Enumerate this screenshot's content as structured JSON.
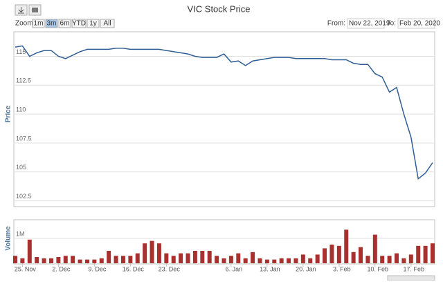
{
  "range_selector": {
    "zoom_label": "Zoom",
    "buttons": [
      "1m",
      "3m",
      "6m",
      "YTD",
      "1y",
      "All"
    ],
    "selected": 1,
    "from_label": "From:",
    "from": "Nov 22, 2019",
    "to_label": "To:",
    "to": "Feb 20, 2020"
  },
  "chart_data": [
    {
      "type": "line",
      "title": "VIC Stock Price",
      "y_label": "Price",
      "color": "#2f5d96",
      "ylim": [
        102,
        117
      ],
      "yticks": [
        102.5,
        105,
        107.5,
        110,
        112.5,
        115
      ],
      "grid": true,
      "values": [
        115.8,
        115.9,
        115.0,
        115.3,
        115.5,
        115.5,
        115.0,
        114.8,
        115.1,
        115.4,
        115.6,
        115.6,
        115.6,
        115.6,
        115.7,
        115.7,
        115.6,
        115.6,
        115.6,
        115.6,
        115.6,
        115.5,
        115.4,
        115.3,
        115.2,
        115.0,
        114.9,
        114.9,
        114.9,
        115.2,
        114.5,
        114.6,
        114.2,
        114.6,
        114.7,
        114.8,
        114.9,
        114.9,
        114.9,
        114.8,
        114.8,
        114.8,
        114.8,
        114.8,
        114.7,
        114.7,
        114.7,
        114.4,
        114.3,
        114.3,
        113.5,
        113.2,
        111.9,
        112.3,
        110.0,
        108.0,
        104.4,
        104.9,
        105.8
      ]
    },
    {
      "type": "bar",
      "y_label": "Volume",
      "color": "#a8302e",
      "ylim": [
        0,
        1750000
      ],
      "yticks": [
        {
          "value": 1000000,
          "label": "1M"
        }
      ],
      "grid": true,
      "categories": [
        null,
        "25. Nov",
        null,
        null,
        null,
        null,
        "2. Dec",
        null,
        null,
        null,
        null,
        "9. Dec",
        null,
        null,
        null,
        null,
        "16. Dec",
        null,
        null,
        null,
        null,
        "23. Dec",
        null,
        null,
        null,
        null,
        null,
        null,
        null,
        null,
        "6. Jan",
        null,
        null,
        null,
        null,
        "13. Jan",
        null,
        null,
        null,
        null,
        "20. Jan",
        null,
        null,
        null,
        null,
        "3. Feb",
        null,
        null,
        null,
        null,
        "10. Feb",
        null,
        null,
        null,
        null,
        "17. Feb",
        null,
        null,
        null
      ],
      "values": [
        300000,
        200000,
        950000,
        250000,
        200000,
        200000,
        250000,
        300000,
        300000,
        150000,
        150000,
        150000,
        200000,
        500000,
        300000,
        300000,
        300000,
        400000,
        800000,
        900000,
        800000,
        400000,
        300000,
        400000,
        400000,
        500000,
        500000,
        500000,
        300000,
        200000,
        300000,
        400000,
        200000,
        450000,
        200000,
        150000,
        150000,
        200000,
        200000,
        200000,
        350000,
        200000,
        350000,
        600000,
        750000,
        700000,
        1350000,
        450000,
        650000,
        300000,
        1150000,
        300000,
        300000,
        400000,
        200000,
        350000,
        700000,
        700000,
        800000
      ]
    }
  ]
}
